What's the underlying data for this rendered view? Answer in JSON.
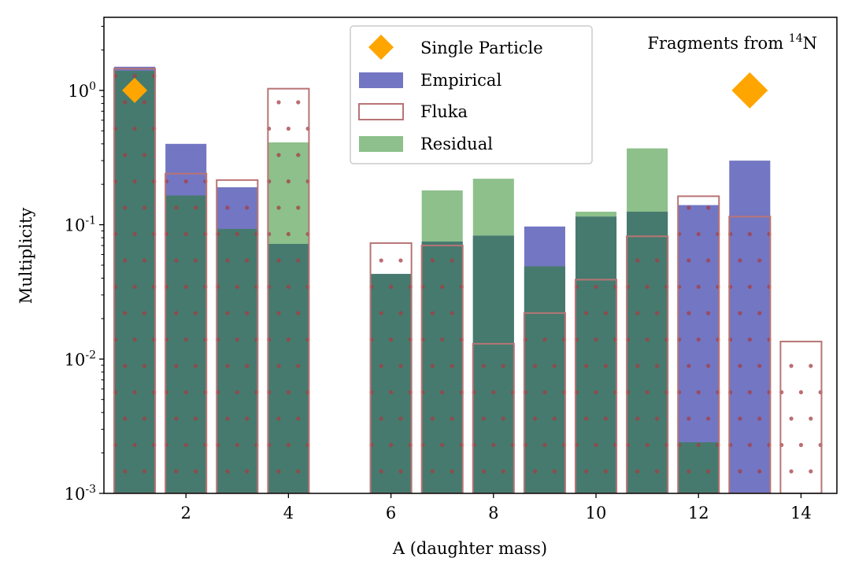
{
  "chart_data": {
    "type": "bar",
    "xlabel": "A (daughter mass)",
    "ylabel": "Multiplicity",
    "yscale": "log",
    "ylim": [
      0.001,
      3.5
    ],
    "xlim": [
      0.4,
      14.7
    ],
    "x_ticks": [
      2,
      4,
      6,
      8,
      10,
      12,
      14
    ],
    "y_ticks": [
      {
        "value": 0.001,
        "base": "10",
        "exp": "-3"
      },
      {
        "value": 0.01,
        "base": "10",
        "exp": "-2"
      },
      {
        "value": 0.1,
        "base": "10",
        "exp": "-1"
      },
      {
        "value": 1,
        "base": "10",
        "exp": "0"
      }
    ],
    "series": [
      {
        "name": "Empirical",
        "style": "filled",
        "color": "#7376c2",
        "x": [
          1,
          2,
          3,
          4,
          6,
          7,
          8,
          9,
          10,
          11,
          12,
          13
        ],
        "values": [
          1.5,
          0.4,
          0.19,
          0.072,
          0.043,
          0.075,
          0.083,
          0.097,
          0.115,
          0.125,
          0.14,
          0.3
        ]
      },
      {
        "name": "Fluka",
        "style": "hatched",
        "edge_color": "#b87475",
        "dot_color": "#a53d44",
        "x": [
          1,
          2,
          3,
          4,
          6,
          7,
          8,
          9,
          10,
          11,
          12,
          13,
          14
        ],
        "values": [
          1.45,
          0.24,
          0.215,
          1.03,
          0.073,
          0.07,
          0.013,
          0.022,
          0.039,
          0.082,
          0.163,
          0.115,
          0.0135
        ]
      },
      {
        "name": "Residual",
        "style": "filled",
        "color": "#8dc08b",
        "x": [
          1,
          2,
          3,
          4,
          6,
          7,
          8,
          9,
          10,
          11,
          12
        ],
        "values": [
          1.4,
          0.165,
          0.093,
          0.41,
          0.043,
          0.18,
          0.22,
          0.049,
          0.125,
          0.37,
          0.0024
        ]
      },
      {
        "name": "Single Particle",
        "style": "diamond",
        "color": "#ffa500",
        "points": [
          {
            "x": 1,
            "y": 1.0,
            "size": "small"
          },
          {
            "x": 13,
            "y": 1.0,
            "size": "large"
          }
        ]
      }
    ],
    "overlap_color": "#467a6e",
    "annotation": {
      "text": "Fragments from ",
      "isotope_mass": "14",
      "element": "N"
    },
    "legend": {
      "position": "top-center",
      "entries": [
        "Single Particle",
        "Empirical",
        "Fluka",
        "Residual"
      ]
    }
  }
}
